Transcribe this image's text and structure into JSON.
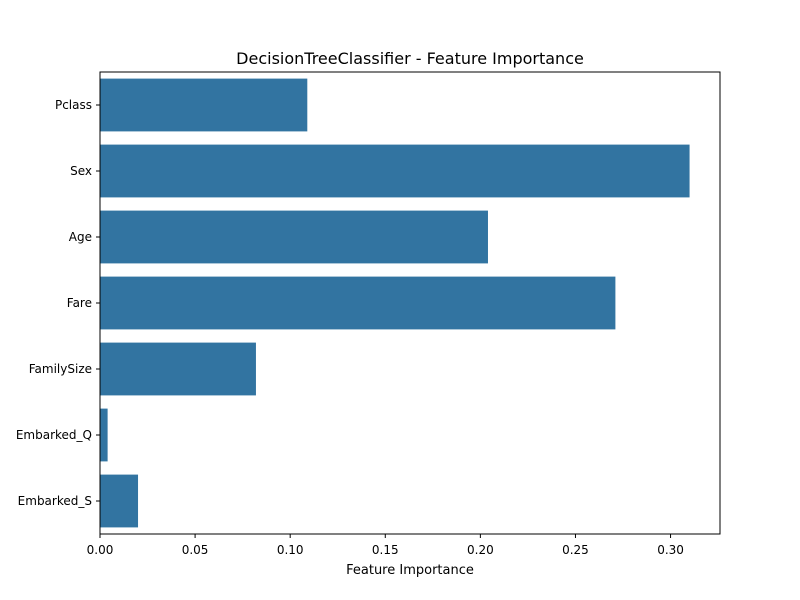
{
  "chart_data": {
    "type": "bar",
    "orientation": "horizontal",
    "title": "DecisionTreeClassifier - Feature Importance",
    "xlabel": "Feature Importance",
    "ylabel": "",
    "categories": [
      "Pclass",
      "Sex",
      "Age",
      "Fare",
      "FamilySize",
      "Embarked_Q",
      "Embarked_S"
    ],
    "values": [
      0.109,
      0.31,
      0.204,
      0.271,
      0.082,
      0.004,
      0.02
    ],
    "xlim": [
      0,
      0.326
    ],
    "xticks": [
      "0.00",
      "0.05",
      "0.10",
      "0.15",
      "0.20",
      "0.25",
      "0.30"
    ],
    "grid": false,
    "bar_color": "#3274a1"
  }
}
